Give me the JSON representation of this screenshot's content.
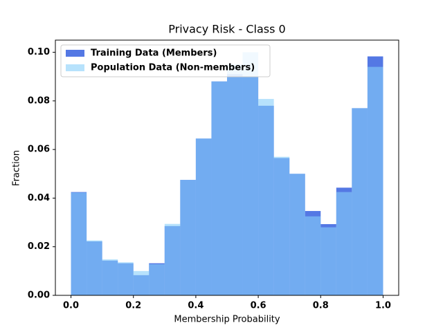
{
  "chart_data": {
    "type": "histogram",
    "title": "Privacy Risk - Class 0",
    "xlabel": "Membership Probability",
    "ylabel": "Fraction",
    "bins": [
      0,
      0.05,
      0.1,
      0.15,
      0.2,
      0.25,
      0.3,
      0.35,
      0.4,
      0.45,
      0.5,
      0.55,
      0.6,
      0.65,
      0.7,
      0.75,
      0.8,
      0.85,
      0.9,
      0.95,
      1.0
    ],
    "series": [
      {
        "name": "Training Data (Members)",
        "color": "#4169e1",
        "opacity": 0.9,
        "values": [
          0.0425,
          0.0222,
          0.0143,
          0.0132,
          0.0083,
          0.0132,
          0.0285,
          0.0475,
          0.0645,
          0.088,
          0.091,
          0.09,
          0.078,
          0.0565,
          0.05,
          0.0347,
          0.0293,
          0.0443,
          0.077,
          0.0983
        ]
      },
      {
        "name": "Population Data (Non-members)",
        "color": "#87cefa",
        "opacity": 0.6,
        "values": [
          0.0423,
          0.0226,
          0.0148,
          0.0136,
          0.01,
          0.0128,
          0.0294,
          0.0475,
          0.0645,
          0.088,
          0.095,
          0.1,
          0.0808,
          0.057,
          0.05,
          0.0325,
          0.028,
          0.0425,
          0.077,
          0.094
        ]
      }
    ],
    "xlim": [
      -0.05,
      1.05
    ],
    "ylim": [
      0,
      0.105
    ],
    "xticks": [
      {
        "value": 0,
        "label": "0.0"
      },
      {
        "value": 0.2,
        "label": "0.2"
      },
      {
        "value": 0.4,
        "label": "0.4"
      },
      {
        "value": 0.6,
        "label": "0.6"
      },
      {
        "value": 0.8,
        "label": "0.8"
      },
      {
        "value": 1.0,
        "label": "1.0"
      }
    ],
    "yticks": [
      {
        "value": 0,
        "label": "0.00"
      },
      {
        "value": 0.02,
        "label": "0.02"
      },
      {
        "value": 0.04,
        "label": "0.04"
      },
      {
        "value": 0.06,
        "label": "0.06"
      },
      {
        "value": 0.08,
        "label": "0.08"
      },
      {
        "value": 0.1,
        "label": "0.10"
      }
    ],
    "legend": "upper left"
  }
}
